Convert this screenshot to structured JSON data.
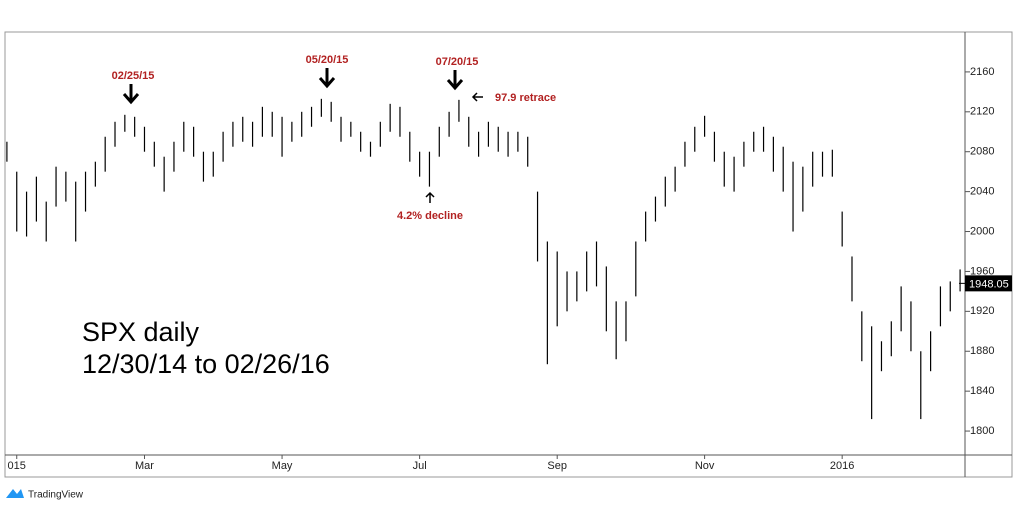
{
  "chart_data": {
    "type": "ohlc",
    "title": "SPX daily",
    "subtitle": "12/30/14 to 02/26/16",
    "categories": [
      null,
      "015",
      null,
      null,
      null,
      null,
      null,
      null,
      null,
      null,
      null,
      null,
      null,
      null,
      "Mar",
      null,
      null,
      null,
      null,
      null,
      null,
      null,
      null,
      null,
      null,
      null,
      null,
      null,
      "May",
      null,
      null,
      null,
      null,
      null,
      null,
      null,
      null,
      null,
      null,
      null,
      null,
      null,
      "Jul",
      null,
      null,
      null,
      null,
      null,
      null,
      null,
      null,
      null,
      null,
      null,
      null,
      null,
      "Sep",
      null,
      null,
      null,
      null,
      null,
      null,
      null,
      null,
      null,
      null,
      null,
      null,
      null,
      null,
      "Nov",
      null,
      null,
      null,
      null,
      null,
      null,
      null,
      null,
      null,
      null,
      null,
      null,
      null,
      "2016",
      null,
      null,
      null,
      null,
      null,
      null,
      null,
      null,
      null,
      null,
      null,
      null
    ],
    "high": [
      2090,
      2060,
      2040,
      2055,
      2030,
      2065,
      2060,
      2050,
      2060,
      2070,
      2095,
      2110,
      2117,
      2115,
      2105,
      2090,
      2075,
      2090,
      2110,
      2105,
      2080,
      2080,
      2100,
      2110,
      2115,
      2110,
      2125,
      2120,
      2115,
      2110,
      2120,
      2125,
      2133,
      2130,
      2115,
      2110,
      2100,
      2090,
      2110,
      2128,
      2125,
      2100,
      2080,
      2080,
      2105,
      2120,
      2132,
      2115,
      2100,
      2110,
      2105,
      2100,
      2100,
      2095,
      2040,
      1990,
      1980,
      1960,
      1960,
      1980,
      1990,
      1965,
      1930,
      1930,
      1990,
      2020,
      2035,
      2055,
      2065,
      2090,
      2105,
      2116,
      2100,
      2080,
      2075,
      2090,
      2100,
      2105,
      2095,
      2085,
      2070,
      2065,
      2080,
      2080,
      2082,
      2020,
      1975,
      1920,
      1905,
      1890,
      1910,
      1945,
      1930,
      1880,
      1900,
      1945,
      1950,
      1962
    ],
    "low": [
      2070,
      2000,
      1995,
      2010,
      1990,
      2025,
      2030,
      1990,
      2020,
      2045,
      2060,
      2085,
      2100,
      2095,
      2080,
      2065,
      2040,
      2060,
      2080,
      2075,
      2050,
      2055,
      2070,
      2085,
      2090,
      2085,
      2095,
      2095,
      2075,
      2090,
      2095,
      2105,
      2115,
      2110,
      2090,
      2095,
      2080,
      2075,
      2085,
      2100,
      2095,
      2070,
      2055,
      2045,
      2075,
      2095,
      2110,
      2085,
      2075,
      2085,
      2080,
      2075,
      2080,
      2065,
      1970,
      1867,
      1905,
      1920,
      1930,
      1940,
      1945,
      1900,
      1872,
      1890,
      1935,
      1990,
      2010,
      2025,
      2040,
      2065,
      2080,
      2095,
      2070,
      2045,
      2040,
      2065,
      2080,
      2080,
      2060,
      2040,
      2000,
      2020,
      2045,
      2055,
      2055,
      1985,
      1930,
      1870,
      1812,
      1860,
      1875,
      1900,
      1880,
      1812,
      1860,
      1905,
      1920,
      1940
    ],
    "color": "#000000",
    "last_price": 1948.05,
    "ylim": [
      1776,
      2200
    ],
    "yticks": [
      1800,
      1840,
      1880,
      1920,
      1960,
      2000,
      2040,
      2080,
      2120,
      2160
    ],
    "annotations": [
      "02/25/15",
      "05/20/15",
      "07/20/15",
      "97.9 retrace",
      "4.2% decline"
    ],
    "logo": "TradingView"
  }
}
